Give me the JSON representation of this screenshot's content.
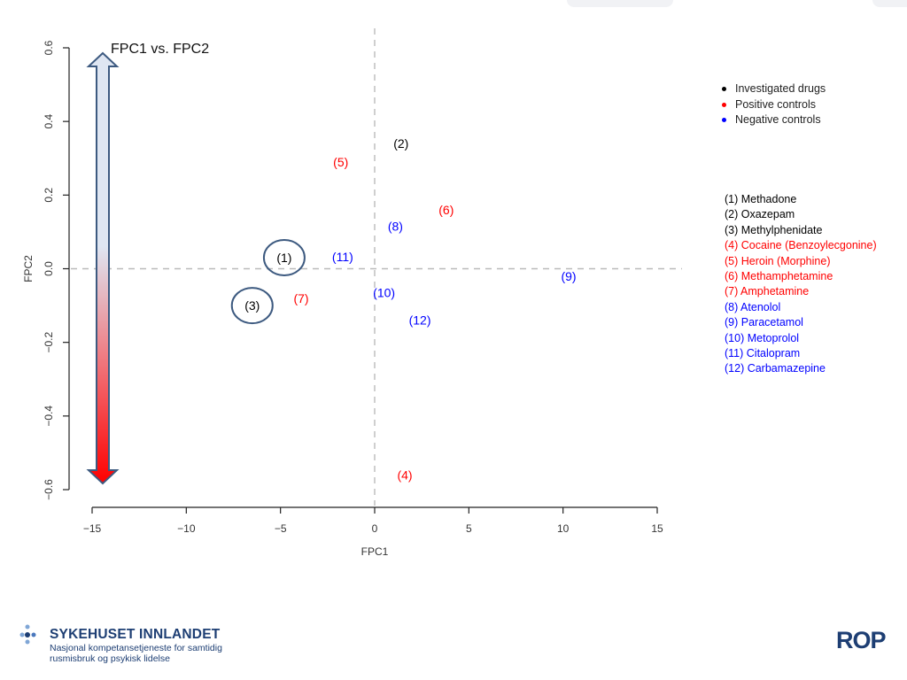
{
  "chart_data": {
    "type": "scatter",
    "title": "FPC1 vs. FPC2",
    "xlabel": "FPC1",
    "ylabel": "FPC2",
    "xlim": [
      -15,
      15
    ],
    "ylim": [
      -0.6,
      0.6
    ],
    "xticks": [
      -15,
      -10,
      -5,
      0,
      5,
      10,
      15
    ],
    "yticks": [
      -0.6,
      -0.4,
      -0.2,
      0,
      0.2,
      0.4,
      0.6
    ],
    "xtick_labels": [
      "−15",
      "−10",
      "−5",
      "0",
      "5",
      "10",
      "15"
    ],
    "ytick_labels": [
      "−0.6",
      "−0.4",
      "−0.2",
      "0.0",
      "0.2",
      "0.4",
      "0.6"
    ],
    "reference_lines": {
      "x": 0,
      "y": 0,
      "style": "dashed"
    },
    "categories_legend": [
      {
        "label": "Investigated drugs",
        "color": "#000000"
      },
      {
        "label": "Positive controls",
        "color": "#ff0000"
      },
      {
        "label": "Negative controls",
        "color": "#0000ff"
      }
    ],
    "points": [
      {
        "label": "(1)",
        "x": -4.8,
        "y": 0.03,
        "group": "investigated",
        "color": "#000000",
        "circled": true
      },
      {
        "label": "(2)",
        "x": 1.4,
        "y": 0.34,
        "group": "investigated",
        "color": "#000000",
        "circled": false
      },
      {
        "label": "(3)",
        "x": -6.5,
        "y": -0.1,
        "group": "investigated",
        "color": "#000000",
        "circled": true
      },
      {
        "label": "(4)",
        "x": 1.6,
        "y": -0.56,
        "group": "positive",
        "color": "#ff0000",
        "circled": false
      },
      {
        "label": "(5)",
        "x": -1.8,
        "y": 0.29,
        "group": "positive",
        "color": "#ff0000",
        "circled": false
      },
      {
        "label": "(6)",
        "x": 3.8,
        "y": 0.16,
        "group": "positive",
        "color": "#ff0000",
        "circled": false
      },
      {
        "label": "(7)",
        "x": -3.9,
        "y": -0.08,
        "group": "positive",
        "color": "#ff0000",
        "circled": false
      },
      {
        "label": "(8)",
        "x": 1.1,
        "y": 0.115,
        "group": "negative",
        "color": "#0000ff",
        "circled": false
      },
      {
        "label": "(9)",
        "x": 10.3,
        "y": -0.02,
        "group": "negative",
        "color": "#0000ff",
        "circled": false
      },
      {
        "label": "(10)",
        "x": 0.5,
        "y": -0.065,
        "group": "negative",
        "color": "#0000ff",
        "circled": false
      },
      {
        "label": "(11)",
        "x": -1.7,
        "y": 0.032,
        "group": "negative",
        "color": "#0000ff",
        "circled": false
      },
      {
        "label": "(12)",
        "x": 2.4,
        "y": -0.14,
        "group": "negative",
        "color": "#0000ff",
        "circled": false
      }
    ],
    "drug_legend": [
      {
        "label": "(1) Methadone",
        "color": "#000000"
      },
      {
        "label": "(2) Oxazepam",
        "color": "#000000"
      },
      {
        "label": "(3) Methylphenidate",
        "color": "#000000"
      },
      {
        "label": "(4) Cocaine (Benzoylecgonine)",
        "color": "#ff0000"
      },
      {
        "label": "(5) Heroin (Morphine)",
        "color": "#ff0000"
      },
      {
        "label": "(6) Methamphetamine",
        "color": "#ff0000"
      },
      {
        "label": "(7) Amphetamine",
        "color": "#ff0000"
      },
      {
        "label": "(8) Atenolol",
        "color": "#0000ff"
      },
      {
        "label": "(9) Paracetamol",
        "color": "#0000ff"
      },
      {
        "label": "(10) Metoprolol",
        "color": "#0000ff"
      },
      {
        "label": "(11) Citalopram",
        "color": "#0000ff"
      },
      {
        "label": "(12) Carbamazepine",
        "color": "#0000ff"
      }
    ],
    "gradient_arrow": {
      "top_color": "#dfe6f2",
      "bottom_color": "#ff0000",
      "outline_color": "#3d5a80"
    },
    "grid": false
  },
  "footer": {
    "org_name": "SYKEHUSET INNLANDET",
    "org_sub_line1": "Nasjonal kompetansetjeneste for samtidig",
    "org_sub_line2": "rusmisbruk og psykisk lidelse",
    "right_logo": "ROP",
    "brand_color": "#1d3e73"
  }
}
